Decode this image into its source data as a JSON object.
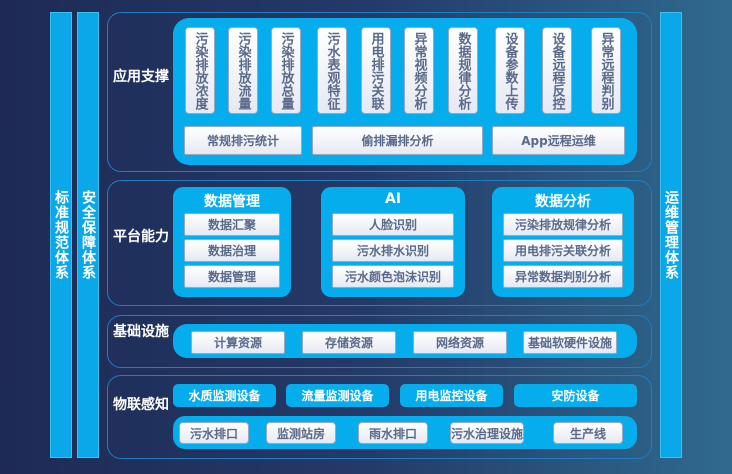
{
  "side": {
    "left1": "标准规范体系",
    "left2": "安全保障体系",
    "right": "运维管理体系"
  },
  "layers": {
    "app": {
      "label": "应用支撑",
      "items": [
        "污染排放浓度",
        "污染排放流量",
        "污染排放总量",
        "污水表观特征",
        "用电排污关联",
        "异常视频分析",
        "数据规律分析",
        "设备参数上传",
        "设备远程反控",
        "异常远程判别"
      ],
      "wide": [
        "常规排污统计",
        "偷排漏排分析",
        "App远程运维"
      ]
    },
    "platform": {
      "label": "平台能力",
      "groups": [
        {
          "title": "数据管理",
          "items": [
            "数据汇聚",
            "数据治理",
            "数据管理"
          ]
        },
        {
          "title": "AI",
          "items": [
            "人脸识别",
            "污水排水识别",
            "污水颜色泡沫识别"
          ]
        },
        {
          "title": "数据分析",
          "items": [
            "污染排放规律分析",
            "用电排污关联分析",
            "异常数据判别分析"
          ]
        }
      ]
    },
    "infra": {
      "label": "基础设施",
      "items": [
        "计算资源",
        "存储资源",
        "网络资源",
        "基础软硬件设施"
      ]
    },
    "iot": {
      "label": "物联感知",
      "devices": [
        "水质监测设备",
        "流量监测设备",
        "用电监控设备",
        "安防设备"
      ],
      "sites": [
        "污水排口",
        "监测站房",
        "雨水排口",
        "污水治理设施",
        "生产线"
      ]
    }
  }
}
